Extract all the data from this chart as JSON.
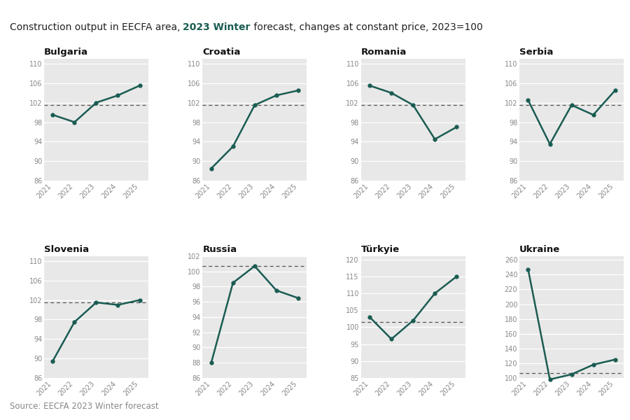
{
  "title_part1": "Construction output in EECFA area, ",
  "title_bold": "2023 Winter",
  "title_part2": " forecast, changes at constant price, 2023=100",
  "source": "Source: EECFA 2023 Winter forecast",
  "years": [
    2021,
    2022,
    2023,
    2024,
    2025
  ],
  "line_color": "#1a5c52",
  "bg_color": "#e8e8e8",
  "subplots": [
    {
      "title": "Bulgaria",
      "values": [
        99.5,
        98.0,
        102.0,
        103.5,
        105.5
      ],
      "ylim": [
        86,
        111
      ],
      "yticks": [
        86,
        90,
        94,
        98,
        102,
        106,
        110
      ],
      "dashed": 101.5
    },
    {
      "title": "Croatia",
      "values": [
        88.5,
        93.0,
        101.5,
        103.5,
        104.5
      ],
      "ylim": [
        86,
        111
      ],
      "yticks": [
        86,
        90,
        94,
        98,
        102,
        106,
        110
      ],
      "dashed": 101.5
    },
    {
      "title": "Romania",
      "values": [
        105.5,
        104.0,
        101.5,
        94.5,
        97.0
      ],
      "ylim": [
        86,
        111
      ],
      "yticks": [
        86,
        90,
        94,
        98,
        102,
        106,
        110
      ],
      "dashed": 101.5
    },
    {
      "title": "Serbia",
      "values": [
        102.5,
        93.5,
        101.5,
        99.5,
        104.5
      ],
      "ylim": [
        86,
        111
      ],
      "yticks": [
        86,
        90,
        94,
        98,
        102,
        106,
        110
      ],
      "dashed": 101.5
    },
    {
      "title": "Slovenia",
      "values": [
        89.5,
        97.5,
        101.5,
        101.0,
        102.0
      ],
      "ylim": [
        86,
        111
      ],
      "yticks": [
        86,
        90,
        94,
        98,
        102,
        106,
        110
      ],
      "dashed": 101.5
    },
    {
      "title": "Russia",
      "values": [
        88.0,
        98.5,
        100.7,
        97.5,
        96.5
      ],
      "ylim": [
        86,
        102
      ],
      "yticks": [
        86,
        88,
        90,
        92,
        94,
        96,
        98,
        100,
        102
      ],
      "dashed": 100.7
    },
    {
      "title": "Türkyie",
      "values": [
        103.0,
        96.5,
        102.0,
        110.0,
        115.0
      ],
      "ylim": [
        85,
        121
      ],
      "yticks": [
        85,
        90,
        95,
        100,
        105,
        110,
        115,
        120
      ],
      "dashed": 101.5
    },
    {
      "title": "Ukraine",
      "values": [
        247.0,
        98.0,
        105.0,
        118.0,
        125.0
      ],
      "ylim": [
        100,
        265
      ],
      "yticks": [
        100,
        120,
        140,
        160,
        180,
        200,
        220,
        240,
        260
      ],
      "dashed": 107.0
    }
  ]
}
